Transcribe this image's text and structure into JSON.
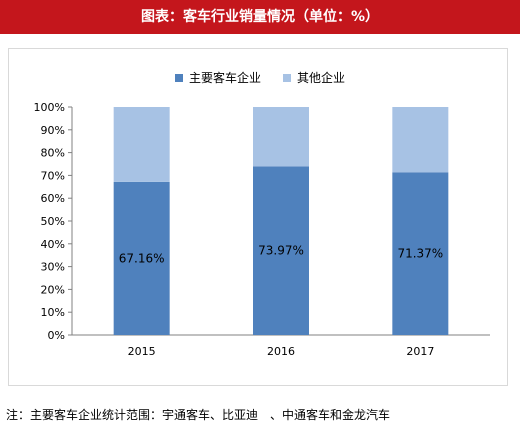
{
  "header": {
    "title": "图表：客车行业销量情况（单位：%）"
  },
  "footer": {
    "note": "注：主要客车企业统计范围：宇通客车、比亚迪　、中通客车和金龙汽车"
  },
  "colors": {
    "title_bg": "#c4161c",
    "series_main": "#4f81bd",
    "series_other": "#a7c2e4"
  },
  "chart_data": {
    "type": "bar",
    "stacked": true,
    "categories": [
      "2015",
      "2016",
      "2017"
    ],
    "series": [
      {
        "name": "主要客车企业",
        "values": [
          67.16,
          73.97,
          71.37
        ],
        "labels": [
          "67.16%",
          "73.97%",
          "71.37%"
        ]
      },
      {
        "name": "其他企业",
        "values": [
          32.84,
          26.03,
          28.63
        ]
      }
    ],
    "y_ticks": [
      "0%",
      "10%",
      "20%",
      "30%",
      "40%",
      "50%",
      "60%",
      "70%",
      "80%",
      "90%",
      "100%"
    ],
    "ylim": [
      0,
      100
    ],
    "legend": "top-center",
    "grid": false
  }
}
